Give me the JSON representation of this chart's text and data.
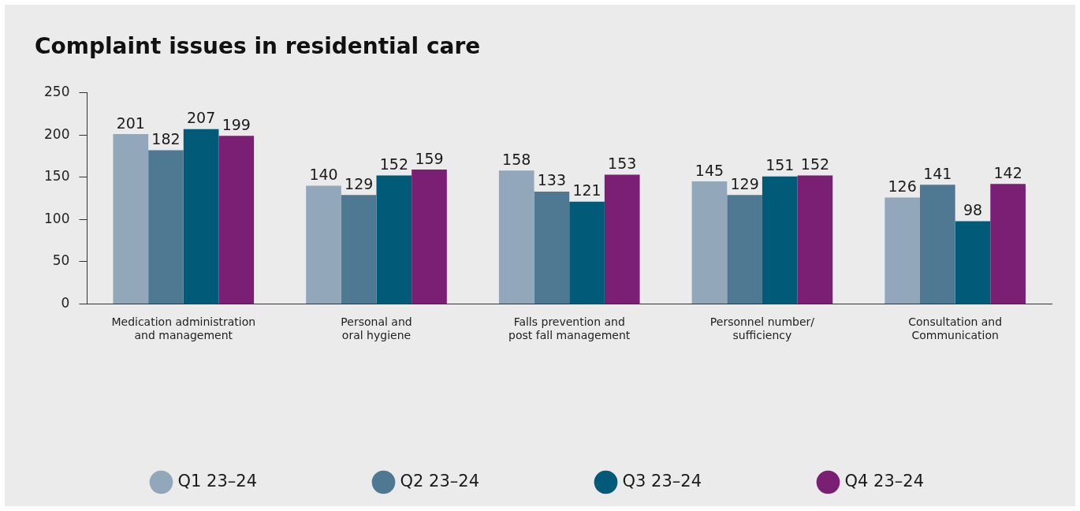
{
  "chart_data": {
    "type": "bar",
    "title": "Complaint issues in residential care",
    "categories": [
      "Medication administration and management",
      "Personal and oral hygiene",
      "Falls prevention and post fall management",
      "Personnel number/ sufficiency",
      "Consultation and Communication"
    ],
    "series": [
      {
        "name": "Q1 23–24",
        "color": "#93a7ba",
        "values": [
          201,
          140,
          158,
          145,
          126
        ]
      },
      {
        "name": "Q2 23–24",
        "color": "#4f7893",
        "values": [
          182,
          129,
          133,
          129,
          141
        ]
      },
      {
        "name": "Q3 23–24",
        "color": "#005a78",
        "values": [
          207,
          152,
          121,
          151,
          98
        ]
      },
      {
        "name": "Q4 23–24",
        "color": "#7a1f74",
        "values": [
          199,
          159,
          153,
          152,
          142
        ]
      }
    ],
    "ylim": [
      0,
      250
    ],
    "yticks": [
      0,
      50,
      100,
      150,
      200,
      250
    ],
    "grid": false,
    "legend": "bottom",
    "data_labels": true
  }
}
